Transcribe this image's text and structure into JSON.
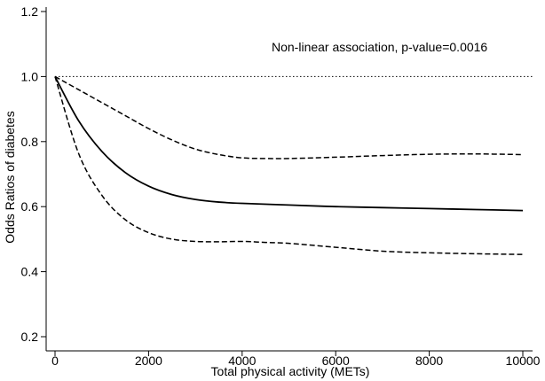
{
  "chart_data": {
    "type": "line",
    "xlabel": "Total physical activity (METs)",
    "ylabel": "Odds Ratios of diabetes",
    "xlim": [
      0,
      10000
    ],
    "ylim": [
      0.2,
      1.2
    ],
    "xticks": [
      0,
      2000,
      4000,
      6000,
      8000,
      10000
    ],
    "yticks": [
      0.2,
      0.4,
      0.6,
      0.8,
      1.0,
      1.2
    ],
    "ytick_labels": [
      "0.2",
      "0.4",
      "0.6",
      "0.8",
      "1.0",
      "1.2"
    ],
    "grid": false,
    "reference_line": {
      "y": 1.0,
      "style": "dotted"
    },
    "annotation": "Non-linear association, p-value=0.0016",
    "series": [
      {
        "style": "solid",
        "x": [
          0,
          500,
          1000,
          1500,
          2000,
          2500,
          3000,
          3500,
          4000,
          5000,
          6000,
          7000,
          8000,
          9000,
          10000
        ],
        "y": [
          1.0,
          0.865,
          0.77,
          0.705,
          0.663,
          0.637,
          0.622,
          0.614,
          0.61,
          0.605,
          0.6,
          0.597,
          0.594,
          0.591,
          0.588
        ]
      },
      {
        "style": "dashed",
        "x": [
          0,
          500,
          1000,
          1500,
          2000,
          2500,
          3000,
          3500,
          4000,
          4500,
          5000,
          6000,
          7000,
          8000,
          9000,
          10000
        ],
        "y": [
          1.0,
          0.96,
          0.92,
          0.88,
          0.84,
          0.805,
          0.777,
          0.76,
          0.75,
          0.748,
          0.748,
          0.752,
          0.757,
          0.761,
          0.762,
          0.76
        ]
      },
      {
        "style": "dashed",
        "x": [
          0,
          500,
          1000,
          1500,
          2000,
          2500,
          3000,
          3500,
          4000,
          4500,
          5000,
          6000,
          7000,
          8000,
          9000,
          10000
        ],
        "y": [
          1.0,
          0.765,
          0.635,
          0.56,
          0.52,
          0.5,
          0.493,
          0.492,
          0.493,
          0.49,
          0.487,
          0.475,
          0.463,
          0.458,
          0.455,
          0.453
        ]
      }
    ]
  }
}
